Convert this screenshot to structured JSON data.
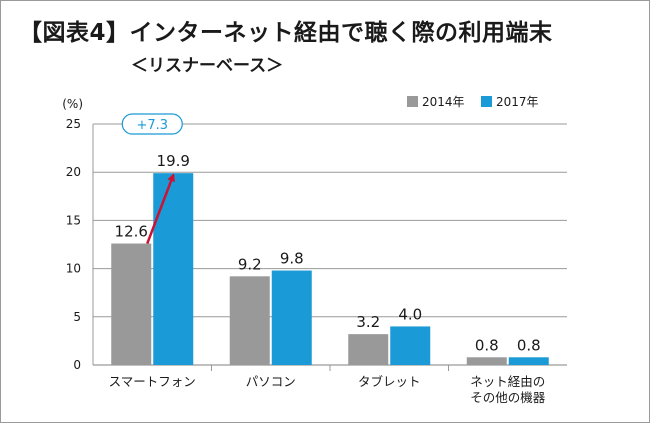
{
  "title": "【図表4】インターネット経由で聴く際の利用端末",
  "subtitle": "＜リスナーベース＞",
  "colors": {
    "series_2014": "#999999",
    "series_2017": "#1a9ad6",
    "arrow": "#cc1133",
    "grid": "#9a9a9a"
  },
  "chart_data": {
    "type": "bar",
    "ylabel": "(%)",
    "ylim": [
      0,
      25
    ],
    "yticks": [
      0,
      5,
      10,
      15,
      20,
      25
    ],
    "grid": true,
    "legend_position": "top-right",
    "categories": [
      [
        "スマートフォン"
      ],
      [
        "パソコン"
      ],
      [
        "タブレット"
      ],
      [
        "ネット経由の",
        "その他の機器"
      ]
    ],
    "series": [
      {
        "name": "2014年",
        "values": [
          12.6,
          9.2,
          3.2,
          0.8
        ],
        "labels": [
          "12.6",
          "9.2",
          "3.2",
          "0.8"
        ]
      },
      {
        "name": "2017年",
        "values": [
          19.9,
          9.8,
          4.0,
          0.8
        ],
        "labels": [
          "19.9",
          "9.8",
          "4.0",
          "0.8"
        ]
      }
    ],
    "annotation": {
      "text": "+7.3",
      "category_index": 0,
      "from_value": 12.6,
      "to_value": 19.9
    }
  }
}
